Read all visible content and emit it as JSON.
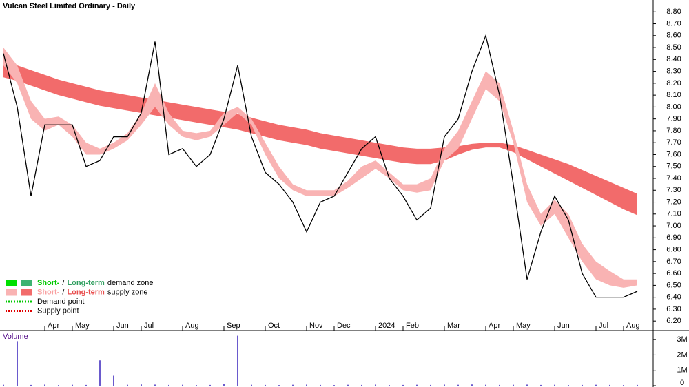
{
  "chart_data": [
    {
      "type": "line",
      "title": "Vulcan Steel Limited Ordinary - Daily",
      "categories": [
        null,
        null,
        null,
        "Apr",
        null,
        "May",
        null,
        null,
        "Jun",
        null,
        "Jul",
        null,
        null,
        "Aug",
        null,
        null,
        "Sep",
        null,
        null,
        "Oct",
        null,
        null,
        "Nov",
        null,
        "Dec",
        null,
        null,
        "2024",
        null,
        "Feb",
        null,
        null,
        "Mar",
        null,
        null,
        "Apr",
        null,
        "May",
        null,
        null,
        "Jun",
        null,
        null,
        "Jul",
        null,
        "Aug",
        null
      ],
      "series": [
        {
          "color": "#000000",
          "values": [
            8.45,
            8.0,
            7.25,
            7.85,
            7.85,
            7.85,
            7.5,
            7.55,
            7.75,
            7.75,
            7.95,
            8.55,
            7.6,
            7.65,
            7.5,
            7.6,
            7.9,
            8.35,
            7.75,
            7.45,
            7.35,
            7.2,
            6.95,
            7.2,
            7.25,
            7.45,
            7.65,
            7.75,
            7.4,
            7.25,
            7.05,
            7.15,
            7.75,
            7.9,
            8.3,
            8.6,
            8.1,
            7.35,
            6.55,
            6.95,
            7.25,
            7.05,
            6.6,
            6.4,
            6.4,
            6.4,
            6.45
          ]
        }
      ],
      "bands": [
        {
          "color": "#f26b6b",
          "upper": [
            8.38,
            8.35,
            8.31,
            8.27,
            8.23,
            8.2,
            8.17,
            8.14,
            8.12,
            8.1,
            8.08,
            8.06,
            8.04,
            8.02,
            8.0,
            7.98,
            7.96,
            7.94,
            7.91,
            7.88,
            7.85,
            7.83,
            7.81,
            7.78,
            7.76,
            7.74,
            7.72,
            7.7,
            7.68,
            7.66,
            7.65,
            7.65,
            7.66,
            7.67,
            7.69,
            7.7,
            7.7,
            7.68,
            7.64,
            7.6,
            7.56,
            7.52,
            7.47,
            7.42,
            7.37,
            7.32,
            7.27
          ],
          "lower": [
            8.25,
            8.22,
            8.18,
            8.14,
            8.1,
            8.07,
            8.04,
            8.01,
            7.99,
            7.97,
            7.95,
            7.93,
            7.91,
            7.89,
            7.87,
            7.85,
            7.83,
            7.81,
            7.78,
            7.75,
            7.72,
            7.7,
            7.68,
            7.65,
            7.63,
            7.61,
            7.59,
            7.57,
            7.55,
            7.53,
            7.52,
            7.52,
            7.55,
            7.6,
            7.64,
            7.66,
            7.66,
            7.62,
            7.56,
            7.5,
            7.44,
            7.38,
            7.32,
            7.26,
            7.2,
            7.14,
            7.09
          ]
        },
        {
          "color": "#f9b3b3",
          "upper": [
            8.5,
            8.35,
            8.05,
            7.9,
            7.92,
            7.85,
            7.7,
            7.65,
            7.7,
            7.78,
            7.95,
            8.2,
            7.95,
            7.8,
            7.78,
            7.8,
            7.95,
            8.0,
            7.9,
            7.7,
            7.5,
            7.35,
            7.3,
            7.3,
            7.3,
            7.38,
            7.5,
            7.55,
            7.45,
            7.35,
            7.35,
            7.4,
            7.65,
            7.8,
            8.05,
            8.3,
            8.2,
            7.8,
            7.35,
            7.1,
            7.22,
            7.1,
            6.85,
            6.7,
            6.62,
            6.55,
            6.55
          ],
          "lower": [
            8.35,
            8.2,
            7.9,
            7.8,
            7.85,
            7.75,
            7.6,
            7.6,
            7.65,
            7.72,
            7.85,
            8.0,
            7.85,
            7.75,
            7.72,
            7.75,
            7.85,
            7.95,
            7.85,
            7.6,
            7.4,
            7.3,
            7.25,
            7.25,
            7.25,
            7.32,
            7.4,
            7.48,
            7.4,
            7.3,
            7.28,
            7.3,
            7.55,
            7.65,
            7.9,
            8.15,
            8.05,
            7.7,
            7.2,
            7.0,
            7.1,
            6.9,
            6.7,
            6.55,
            6.5,
            6.48,
            6.5
          ]
        }
      ],
      "ylim": [
        6.12,
        8.9
      ],
      "yticks": [
        {
          "value": 6.2,
          "label": "6.20"
        },
        {
          "value": 6.3,
          "label": "6.30"
        },
        {
          "value": 6.4,
          "label": "6.40"
        },
        {
          "value": 6.5,
          "label": "6.50"
        },
        {
          "value": 6.6,
          "label": "6.60"
        },
        {
          "value": 6.7,
          "label": "6.70"
        },
        {
          "value": 6.8,
          "label": "6.80"
        },
        {
          "value": 6.9,
          "label": "6.90"
        },
        {
          "value": 7.0,
          "label": "7.00"
        },
        {
          "value": 7.1,
          "label": "7.10"
        },
        {
          "value": 7.2,
          "label": "7.20"
        },
        {
          "value": 7.3,
          "label": "7.30"
        },
        {
          "value": 7.4,
          "label": "7.40"
        },
        {
          "value": 7.5,
          "label": "7.50"
        },
        {
          "value": 7.6,
          "label": "7.60"
        },
        {
          "value": 7.7,
          "label": "7.70"
        },
        {
          "value": 7.8,
          "label": "7.80"
        },
        {
          "value": 7.9,
          "label": "7.90"
        },
        {
          "value": 8.0,
          "label": "8.00"
        },
        {
          "value": 8.1,
          "label": "8.10"
        },
        {
          "value": 8.2,
          "label": "8.20"
        },
        {
          "value": 8.3,
          "label": "8.30"
        },
        {
          "value": 8.4,
          "label": "8.40"
        },
        {
          "value": 8.5,
          "label": "8.50"
        },
        {
          "value": 8.6,
          "label": "8.60"
        },
        {
          "value": 8.7,
          "label": "8.70"
        },
        {
          "value": 8.8,
          "label": "8.80"
        }
      ],
      "legend": [
        {
          "swatches": [
            "#00e000",
            "#3cb371"
          ],
          "short": "Short-",
          "sep": "/",
          "long": "Long-term",
          "suffix": "demand zone",
          "short_color": "#00c800",
          "long_color": "#2e9e5e"
        },
        {
          "swatches": [
            "#f9b3b3",
            "#f26b6b"
          ],
          "short": "Short-",
          "sep": "/",
          "long": "Long-term",
          "suffix": "supply zone",
          "short_color": "#f9a0a0",
          "long_color": "#e84c4c"
        },
        {
          "dots": "#00c800",
          "text": "Demand point"
        },
        {
          "dots": "#e00000",
          "text": "Supply point"
        }
      ]
    },
    {
      "type": "bar",
      "title": "Volume",
      "color": "#6a5acd",
      "values": [
        60000,
        2900000,
        50000,
        70000,
        40000,
        60000,
        50000,
        1650000,
        650000,
        60000,
        80000,
        70000,
        50000,
        60000,
        40000,
        50000,
        90000,
        3250000,
        60000,
        50000,
        40000,
        60000,
        70000,
        50000,
        40000,
        60000,
        50000,
        70000,
        40000,
        50000,
        60000,
        50000,
        70000,
        60000,
        80000,
        60000,
        50000,
        60000,
        70000,
        50000,
        60000,
        40000,
        50000,
        60000,
        50000,
        40000,
        50000
      ],
      "ylim": [
        0,
        3500000
      ],
      "yticks": [
        0,
        {
          "value": 1000000,
          "label": "1M"
        },
        {
          "value": 2000000,
          "label": "2M"
        },
        {
          "value": 3000000,
          "label": "3M"
        }
      ]
    }
  ]
}
